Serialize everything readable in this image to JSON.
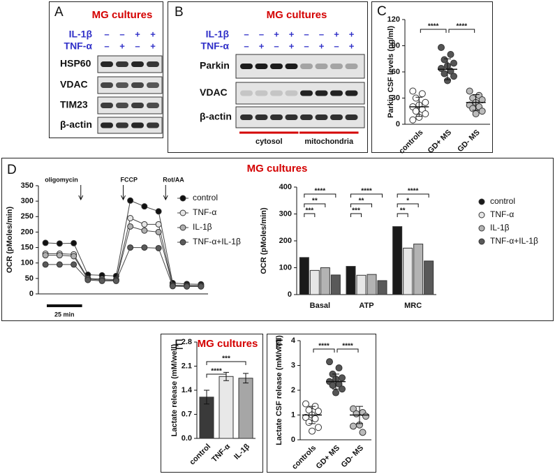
{
  "blots": [
    {
      "panel": "A",
      "title": "MG cultures",
      "treatments": [
        {
          "name": "IL-1β",
          "signs": [
            "–",
            "–",
            "+",
            "+"
          ]
        },
        {
          "name": "TNF-α",
          "signs": [
            "–",
            "+",
            "–",
            "+"
          ]
        }
      ],
      "bands": [
        "HSP60",
        "VDAC",
        "TIM23",
        "β-actin"
      ]
    },
    {
      "panel": "B",
      "title": "MG cultures",
      "treatments": [
        {
          "name": "IL-1β",
          "signs": [
            "–",
            "–",
            "+",
            "+",
            "–",
            "–",
            "+",
            "+"
          ]
        },
        {
          "name": "TNF-α",
          "signs": [
            "–",
            "+",
            "–",
            "+",
            "–",
            "+",
            "–",
            "+"
          ]
        }
      ],
      "bands": [
        "Parkin",
        "VDAC",
        "β-actin"
      ],
      "fractions": [
        "cytosol",
        "mitochondria"
      ]
    }
  ],
  "chart_data": [
    {
      "panel": "C",
      "type": "dotplot",
      "ylabel": "Parkin CSF levels (pg/ml)",
      "categories": [
        "controls",
        "GD+ MS",
        "GD- MS"
      ],
      "colors": [
        "#ffffff",
        "#555555",
        "#bbbbbb"
      ],
      "values": [
        [
          38,
          35,
          30,
          25,
          22,
          20,
          17,
          15,
          12,
          8,
          5
        ],
        [
          88,
          80,
          74,
          70,
          67,
          64,
          61,
          58,
          55,
          50
        ],
        [
          38,
          33,
          30,
          28,
          25,
          22,
          20,
          18,
          15,
          12
        ]
      ],
      "means": [
        20,
        63,
        25
      ],
      "sds": [
        11,
        12,
        9
      ],
      "ylim": [
        0,
        120
      ],
      "yticks": [
        0,
        30,
        60,
        90,
        120
      ],
      "brackets": [
        {
          "label": "****",
          "between": [
            "controls",
            "GD+ MS"
          ]
        },
        {
          "label": "****",
          "between": [
            "GD+ MS",
            "GD- MS"
          ]
        }
      ]
    },
    {
      "panel": "D",
      "type": "line",
      "title": "MG cultures",
      "ylabel": "OCR (pMoles/min)",
      "x": [
        0,
        10,
        20,
        30,
        40,
        50,
        60,
        70,
        80,
        90,
        100,
        110
      ],
      "xlim": [
        -5,
        115
      ],
      "series": [
        {
          "name": "control",
          "color": "#111111",
          "values": [
            165,
            163,
            164,
            62,
            60,
            58,
            302,
            283,
            267,
            35,
            32,
            31
          ]
        },
        {
          "name": "TNF-α",
          "color": "#e6e6e6",
          "values": [
            130,
            130,
            128,
            50,
            48,
            46,
            245,
            225,
            225,
            28,
            27,
            27
          ]
        },
        {
          "name": "IL-1β",
          "color": "#b0b0b0",
          "values": [
            125,
            125,
            122,
            48,
            45,
            44,
            218,
            205,
            200,
            27,
            25,
            25
          ]
        },
        {
          "name": "TNF-α+IL-1β",
          "color": "#5a5a5a",
          "values": [
            95,
            95,
            95,
            45,
            42,
            42,
            150,
            150,
            148,
            25,
            24,
            24
          ]
        }
      ],
      "ylim": [
        0,
        350
      ],
      "yticks": [
        0,
        50,
        100,
        150,
        200,
        250,
        300,
        350
      ],
      "annotations": [
        {
          "label": "oligomycin",
          "x": 25
        },
        {
          "label": "FCCP",
          "x": 55
        },
        {
          "label": "Rot/AA",
          "x": 85
        }
      ],
      "scalebar": {
        "value": 25,
        "label": "25 min"
      }
    },
    {
      "type": "bar",
      "ylabel": "OCR (pMoles/min)",
      "categories": [
        "Basal",
        "ATP",
        "MRC"
      ],
      "series": [
        {
          "name": "control",
          "color": "#1a1a1a",
          "values": [
            138,
            105,
            253
          ]
        },
        {
          "name": "TNF-α",
          "color": "#e6e6e6",
          "values": [
            90,
            72,
            173
          ]
        },
        {
          "name": "IL-1β",
          "color": "#b3b3b3",
          "values": [
            100,
            75,
            188
          ]
        },
        {
          "name": "TNF-α+IL-1β",
          "color": "#595959",
          "values": [
            73,
            52,
            125
          ]
        }
      ],
      "ylim": [
        0,
        400
      ],
      "yticks": [
        0,
        100,
        200,
        300,
        400
      ],
      "brackets": [
        [
          "***",
          "**",
          "****"
        ],
        [
          "***",
          "**",
          "****"
        ],
        [
          "**",
          "*",
          "****"
        ]
      ]
    },
    {
      "panel": "E",
      "type": "bar",
      "title": "MG cultures",
      "ylabel": "Lactate release (mM/well)",
      "categories": [
        "control",
        "TNF-α",
        "IL-1β"
      ],
      "colors": [
        "#3a3a3a",
        "#e8e8e8",
        "#a6a6a6"
      ],
      "values": [
        1.2,
        1.8,
        1.75
      ],
      "errors": [
        0.2,
        0.12,
        0.14
      ],
      "ylim": [
        0,
        2.8
      ],
      "yticks": [
        {
          "value": 0,
          "label": "0.0"
        },
        0.7,
        1.4,
        2.1,
        2.8
      ],
      "brackets": [
        {
          "label": "****",
          "between": [
            "control",
            "TNF-α"
          ]
        },
        {
          "label": "***",
          "between": [
            "control",
            "IL-1β"
          ]
        }
      ]
    },
    {
      "panel": "F",
      "type": "dotplot",
      "ylabel": "Lactate CSF release (mM/well)",
      "categories": [
        "controls",
        "GD+ MS",
        "GD- MS"
      ],
      "colors": [
        "#ffffff",
        "#555555",
        "#bbbbbb"
      ],
      "values": [
        [
          1.45,
          1.35,
          1.2,
          1.15,
          1.0,
          0.9,
          0.85,
          0.7,
          0.5,
          0.35
        ],
        [
          3.15,
          2.9,
          2.65,
          2.5,
          2.45,
          2.35,
          2.25,
          2.2,
          2.05,
          1.9
        ],
        [
          1.25,
          1.1,
          1.05,
          0.95,
          0.6,
          0.55,
          0.3
        ]
      ],
      "means": [
        1.0,
        2.35,
        1.0
      ],
      "sds": [
        0.35,
        0.3,
        0.35
      ],
      "ylim": [
        0,
        4
      ],
      "yticks": [
        0,
        1,
        2,
        3,
        4
      ],
      "brackets": [
        {
          "label": "****",
          "between": [
            "controls",
            "GD+ MS"
          ]
        },
        {
          "label": "****",
          "between": [
            "GD+ MS",
            "GD- MS"
          ]
        }
      ]
    }
  ]
}
